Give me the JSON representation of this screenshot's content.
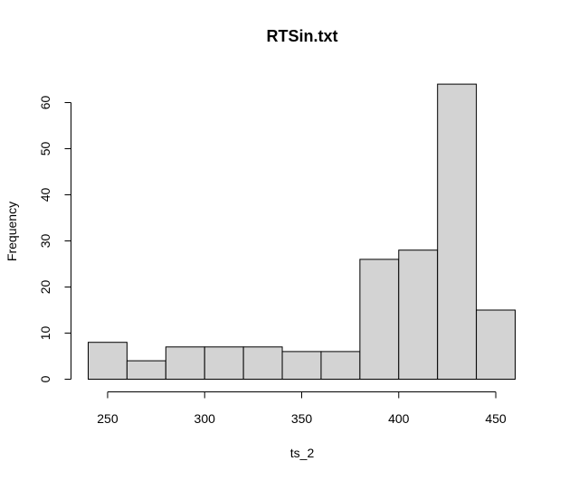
{
  "chart_data": {
    "type": "histogram",
    "title": "RTSin.txt",
    "xlabel": "ts_2",
    "ylabel": "Frequency",
    "bins": [
      {
        "start": 240,
        "end": 260,
        "count": 8
      },
      {
        "start": 260,
        "end": 280,
        "count": 4
      },
      {
        "start": 280,
        "end": 300,
        "count": 7
      },
      {
        "start": 300,
        "end": 320,
        "count": 7
      },
      {
        "start": 320,
        "end": 340,
        "count": 7
      },
      {
        "start": 340,
        "end": 360,
        "count": 6
      },
      {
        "start": 360,
        "end": 380,
        "count": 6
      },
      {
        "start": 380,
        "end": 400,
        "count": 26
      },
      {
        "start": 400,
        "end": 420,
        "count": 28
      },
      {
        "start": 420,
        "end": 440,
        "count": 64
      },
      {
        "start": 440,
        "end": 460,
        "count": 15
      }
    ],
    "x_ticks": [
      250,
      300,
      350,
      400,
      450
    ],
    "y_ticks": [
      0,
      10,
      20,
      30,
      40,
      50,
      60
    ],
    "bar_color": "#d3d3d3",
    "grid": false
  }
}
